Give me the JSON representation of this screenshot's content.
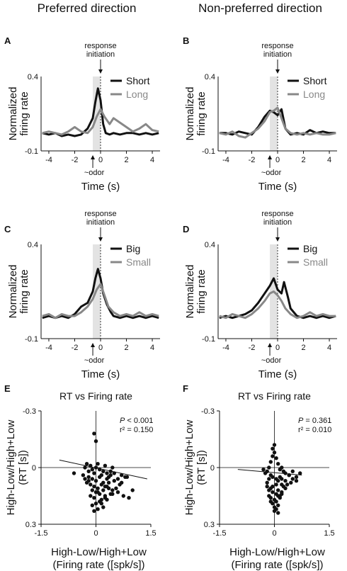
{
  "columns": [
    "Preferred direction",
    "Non-preferred direction"
  ],
  "chart_data": [
    {
      "id": "A",
      "type": "line",
      "column": "Preferred direction",
      "ylabel": "Normalized\nfiring rate",
      "xlabel": "Time (s)",
      "xticks": [
        "-4",
        "-2",
        "0",
        "2",
        "4"
      ],
      "yticks": [
        "0.4",
        "-0.1"
      ],
      "xlim": [
        -4.6,
        4.6
      ],
      "ylim": [
        -0.1,
        0.4
      ],
      "shade": [
        -0.6,
        0.0
      ],
      "marker_top": "response\ninitiation",
      "marker_bottom": "~odor",
      "legend": [
        "Short",
        "Long"
      ],
      "series": [
        {
          "name": "Short",
          "color": "#111111",
          "width": 3,
          "x": [
            -4.5,
            -4.0,
            -3.5,
            -3.0,
            -2.5,
            -2.0,
            -1.5,
            -1.0,
            -0.6,
            -0.4,
            -0.2,
            0.0,
            0.2,
            0.4,
            0.7,
            1.0,
            1.5,
            2.0,
            2.5,
            3.0,
            3.5,
            4.0,
            4.5
          ],
          "y": [
            0.02,
            0.01,
            0.02,
            0.0,
            0.01,
            0.0,
            0.01,
            0.05,
            0.12,
            0.23,
            0.32,
            0.24,
            0.08,
            0.02,
            0.01,
            0.02,
            0.01,
            0.02,
            0.02,
            0.01,
            0.02,
            0.01,
            0.02
          ]
        },
        {
          "name": "Long",
          "color": "#888888",
          "width": 3,
          "x": [
            -4.5,
            -4.0,
            -3.5,
            -3.0,
            -2.5,
            -2.0,
            -1.5,
            -1.0,
            -0.6,
            -0.3,
            0.0,
            0.3,
            0.7,
            1.0,
            1.5,
            2.0,
            2.5,
            3.0,
            3.5,
            4.0,
            4.5
          ],
          "y": [
            0.02,
            0.03,
            0.02,
            0.01,
            0.03,
            0.06,
            0.03,
            0.02,
            0.06,
            0.13,
            0.18,
            0.13,
            0.08,
            0.12,
            0.09,
            0.06,
            0.03,
            0.05,
            0.08,
            0.04,
            0.03
          ]
        }
      ]
    },
    {
      "id": "B",
      "type": "line",
      "column": "Non-preferred direction",
      "ylabel": "Normalized\nfiring rate",
      "xlabel": "Time (s)",
      "xticks": [
        "-4",
        "-2",
        "0",
        "2",
        "4"
      ],
      "yticks": [
        "0.4",
        "-0.1"
      ],
      "xlim": [
        -4.6,
        4.6
      ],
      "ylim": [
        -0.1,
        0.4
      ],
      "shade": [
        -0.6,
        0.0
      ],
      "marker_top": "response\ninitiation",
      "marker_bottom": "~odor",
      "legend": [
        "Short",
        "Long"
      ],
      "series": [
        {
          "name": "Short",
          "color": "#111111",
          "width": 3,
          "x": [
            -4.5,
            -4.0,
            -3.5,
            -3.0,
            -2.5,
            -2.0,
            -1.5,
            -1.0,
            -0.6,
            -0.3,
            0.0,
            0.3,
            0.6,
            1.0,
            1.5,
            2.0,
            2.5,
            3.0,
            3.5,
            4.0,
            4.5
          ],
          "y": [
            0.02,
            0.02,
            0.01,
            0.03,
            0.02,
            0.01,
            0.06,
            0.13,
            0.17,
            0.16,
            0.14,
            0.18,
            0.05,
            0.01,
            0.02,
            0.01,
            0.04,
            0.02,
            0.03,
            0.02,
            0.02
          ]
        },
        {
          "name": "Long",
          "color": "#888888",
          "width": 3,
          "x": [
            -4.5,
            -4.0,
            -3.5,
            -3.0,
            -2.5,
            -2.0,
            -1.5,
            -1.0,
            -0.6,
            -0.3,
            0.0,
            0.3,
            0.6,
            1.0,
            1.5,
            2.0,
            2.5,
            3.0,
            3.5,
            4.0,
            4.5
          ],
          "y": [
            0.02,
            0.01,
            0.03,
            0.0,
            -0.01,
            0.02,
            0.05,
            0.1,
            0.16,
            0.17,
            0.19,
            0.12,
            0.05,
            0.02,
            0.01,
            0.02,
            0.01,
            0.02,
            0.01,
            0.01,
            0.02
          ]
        }
      ]
    },
    {
      "id": "C",
      "type": "line",
      "column": "Preferred direction",
      "ylabel": "Normalized\nfiring rate",
      "xlabel": "Time (s)",
      "xticks": [
        "-4",
        "-2",
        "0",
        "2",
        "4"
      ],
      "yticks": [
        "0.4",
        "-0.1"
      ],
      "xlim": [
        -4.6,
        4.6
      ],
      "ylim": [
        -0.1,
        0.4
      ],
      "shade": [
        -0.6,
        0.0
      ],
      "marker_top": "response\ninitiation",
      "marker_bottom": "~odor",
      "legend": [
        "Big",
        "Small"
      ],
      "series": [
        {
          "name": "Big",
          "color": "#111111",
          "width": 3,
          "x": [
            -4.5,
            -4.0,
            -3.5,
            -3.0,
            -2.5,
            -2.0,
            -1.5,
            -1.0,
            -0.6,
            -0.4,
            -0.2,
            0.0,
            0.2,
            0.5,
            0.8,
            1.0,
            1.5,
            2.0,
            2.5,
            3.0,
            3.5,
            4.0,
            4.5
          ],
          "y": [
            0.01,
            0.02,
            0.01,
            0.02,
            0.01,
            0.03,
            0.07,
            0.09,
            0.15,
            0.22,
            0.27,
            0.22,
            0.14,
            0.08,
            0.04,
            0.02,
            0.01,
            0.02,
            0.01,
            0.02,
            0.01,
            0.02,
            0.01
          ]
        },
        {
          "name": "Small",
          "color": "#888888",
          "width": 3,
          "x": [
            -4.5,
            -4.0,
            -3.5,
            -3.0,
            -2.5,
            -2.0,
            -1.5,
            -1.0,
            -0.6,
            -0.3,
            0.0,
            0.3,
            0.6,
            1.0,
            1.5,
            2.0,
            2.5,
            3.0,
            3.5,
            4.0,
            4.5
          ],
          "y": [
            0.02,
            0.03,
            0.01,
            0.03,
            0.02,
            0.02,
            0.04,
            0.07,
            0.11,
            0.16,
            0.19,
            0.13,
            0.07,
            0.04,
            0.02,
            0.03,
            0.02,
            0.04,
            0.02,
            0.03,
            0.02
          ]
        }
      ]
    },
    {
      "id": "D",
      "type": "line",
      "column": "Non-preferred direction",
      "ylabel": "Normalized\nfiring rate",
      "xlabel": "Time (s)",
      "xticks": [
        "-4",
        "-2",
        "0",
        "2",
        "4"
      ],
      "yticks": [
        "0.4",
        "-0.1"
      ],
      "xlim": [
        -4.6,
        4.6
      ],
      "ylim": [
        -0.1,
        0.4
      ],
      "shade": [
        -0.6,
        0.0
      ],
      "marker_top": "response\ninitiation",
      "marker_bottom": "~odor",
      "legend": [
        "Big",
        "Small"
      ],
      "series": [
        {
          "name": "Big",
          "color": "#111111",
          "width": 3,
          "x": [
            -4.5,
            -4.0,
            -3.5,
            -3.0,
            -2.5,
            -2.0,
            -1.5,
            -1.0,
            -0.6,
            -0.3,
            0.0,
            0.3,
            0.5,
            0.8,
            1.0,
            1.5,
            2.0,
            2.5,
            3.0,
            3.5,
            4.0,
            4.5
          ],
          "y": [
            0.01,
            0.02,
            0.01,
            0.02,
            0.03,
            0.05,
            0.09,
            0.14,
            0.18,
            0.22,
            0.16,
            0.14,
            0.2,
            0.12,
            0.06,
            0.02,
            0.01,
            0.02,
            0.01,
            0.02,
            0.01,
            0.02
          ]
        },
        {
          "name": "Small",
          "color": "#888888",
          "width": 3,
          "x": [
            -4.5,
            -4.0,
            -3.5,
            -3.0,
            -2.5,
            -2.0,
            -1.5,
            -1.0,
            -0.6,
            -0.3,
            0.0,
            0.3,
            0.6,
            1.0,
            1.5,
            2.0,
            2.5,
            3.0,
            3.5,
            4.0,
            4.5
          ],
          "y": [
            0.02,
            0.01,
            0.03,
            0.02,
            0.01,
            0.03,
            0.06,
            0.1,
            0.14,
            0.15,
            0.13,
            0.1,
            0.06,
            0.03,
            0.01,
            0.02,
            0.04,
            0.02,
            0.03,
            0.02,
            0.02
          ]
        }
      ]
    },
    {
      "id": "E",
      "type": "scatter",
      "column": "Preferred direction",
      "title": "RT vs Firing rate",
      "ylabel": "High-Low/High+Low\n(RT [s])",
      "xlabel": "High-Low/High+Low\n(Firing rate ([spk/s])",
      "xticks": [
        "-1.5",
        "0",
        "1.5"
      ],
      "yticks": [
        "-0.3",
        "0",
        "0.3"
      ],
      "xlim": [
        -1.5,
        1.5
      ],
      "ylim": [
        -0.3,
        0.3
      ],
      "y_inverted": true,
      "stats": [
        "P < 0.001",
        "r² = 0.150"
      ],
      "fit": {
        "x": [
          -1.0,
          1.4
        ],
        "y": [
          -0.04,
          0.06
        ]
      },
      "points": {
        "x": [
          -0.05,
          0.0,
          -0.6,
          -0.3,
          -0.25,
          -0.2,
          -0.15,
          -0.1,
          -0.05,
          0.0,
          0.05,
          0.1,
          0.15,
          0.2,
          0.25,
          0.3,
          0.35,
          0.4,
          0.45,
          0.5,
          0.6,
          0.7,
          0.8,
          -0.35,
          -0.2,
          -0.1,
          0.0,
          0.1,
          0.2,
          0.3,
          0.4,
          0.5,
          -0.25,
          -0.15,
          -0.05,
          0.05,
          0.15,
          0.25,
          0.35,
          0.45,
          0.55,
          0.65,
          -0.3,
          -0.2,
          -0.1,
          0.0,
          0.1,
          0.2,
          0.3,
          -0.15,
          -0.05,
          0.05,
          0.15,
          0.25,
          0.35,
          0.45,
          0.6,
          0.75,
          0.9,
          1.0,
          -0.1,
          0.0,
          0.1,
          0.2,
          0.3,
          0.4,
          -0.05,
          0.05,
          0.15,
          0.25,
          0.7,
          0.85
        ],
        "y": [
          -0.18,
          -0.14,
          0.03,
          0.0,
          -0.02,
          0.02,
          -0.01,
          0.01,
          0.03,
          0.0,
          -0.02,
          0.01,
          0.04,
          0.02,
          -0.01,
          0.03,
          0.05,
          0.02,
          0.0,
          0.03,
          0.06,
          0.04,
          0.05,
          0.04,
          0.05,
          0.06,
          0.07,
          0.05,
          0.08,
          0.06,
          0.04,
          0.07,
          0.08,
          0.09,
          0.1,
          0.11,
          0.09,
          0.1,
          0.08,
          0.12,
          0.11,
          0.09,
          0.06,
          0.07,
          0.12,
          0.13,
          0.14,
          0.12,
          0.1,
          0.15,
          0.16,
          0.13,
          0.17,
          0.15,
          0.11,
          0.14,
          0.13,
          0.15,
          0.16,
          0.12,
          0.2,
          0.19,
          0.18,
          0.21,
          0.17,
          0.14,
          0.23,
          0.22,
          0.19,
          0.16,
          0.08,
          0.05
        ]
      }
    },
    {
      "id": "F",
      "type": "scatter",
      "column": "Non-preferred direction",
      "title": "RT vs Firing rate",
      "ylabel": "High-Low/High+Low\n(RT [s])",
      "xlabel": "High-Low/High+Low\n(Firing rate ([spk/s])",
      "xticks": [
        "-1.5",
        "0",
        "1.5"
      ],
      "yticks": [
        "-0.3",
        "0",
        "0.3"
      ],
      "xlim": [
        -1.5,
        1.5
      ],
      "ylim": [
        -0.3,
        0.3
      ],
      "y_inverted": true,
      "stats": [
        "P = 0.361",
        "r² = 0.010"
      ],
      "fit": {
        "x": [
          -1.0,
          0.75
        ],
        "y": [
          0.01,
          0.04
        ]
      },
      "points": {
        "x": [
          -0.05,
          0.0,
          0.05,
          -0.1,
          0.1,
          -0.15,
          0.15,
          -0.2,
          0.2,
          -0.25,
          0.25,
          -0.3,
          0.3,
          0.4,
          0.5,
          0.6,
          0.7,
          -0.05,
          0.05,
          -0.1,
          0.1,
          -0.15,
          0.15,
          -0.2,
          0.2,
          0.3,
          0.4,
          0.5,
          -0.05,
          0.05,
          -0.1,
          0.1,
          -0.2,
          0.2,
          0.3,
          0.45,
          0.6,
          -0.05,
          0.05,
          -0.15,
          0.15,
          0.25,
          0.35,
          -0.1,
          0.0,
          0.1,
          0.2,
          -0.05,
          0.05,
          0.15,
          0.0,
          0.1,
          -0.1,
          0.0,
          0.05,
          0.2,
          -0.15,
          0.1,
          0.0,
          -0.05
        ],
        "y": [
          -0.1,
          -0.08,
          -0.05,
          -0.03,
          -0.02,
          0.0,
          0.01,
          0.02,
          0.0,
          0.03,
          0.02,
          0.01,
          0.03,
          0.04,
          0.02,
          0.05,
          0.03,
          0.05,
          0.06,
          0.04,
          0.07,
          0.06,
          0.05,
          0.08,
          0.06,
          0.07,
          0.04,
          0.06,
          0.1,
          0.09,
          0.11,
          0.12,
          0.1,
          0.09,
          0.11,
          0.08,
          0.07,
          0.13,
          0.14,
          0.12,
          0.15,
          0.1,
          0.09,
          0.16,
          0.17,
          0.15,
          0.13,
          0.19,
          0.18,
          0.16,
          0.21,
          0.2,
          0.18,
          0.23,
          0.22,
          0.14,
          0.15,
          0.24,
          -0.12,
          -0.06
        ]
      }
    }
  ]
}
